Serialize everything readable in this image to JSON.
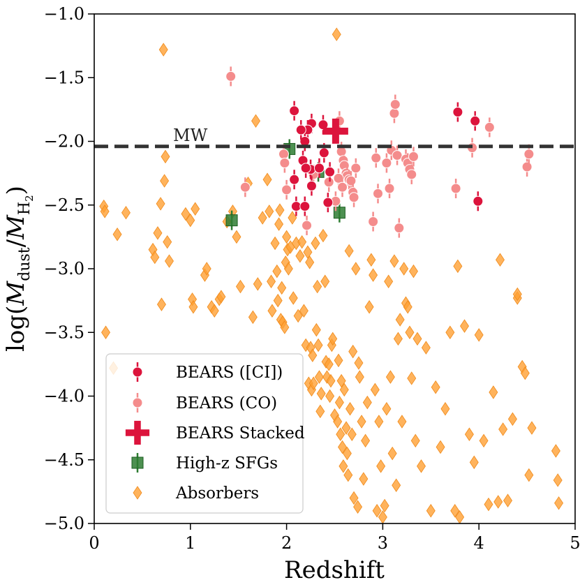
{
  "chart_data": {
    "type": "scatter",
    "xlabel": "Redshift",
    "ylabel": "log (M_dust/M_H2)",
    "xlim": [
      0,
      5
    ],
    "ylim": [
      -5.0,
      -1.0
    ],
    "xticks": [
      "0",
      "1",
      "2",
      "3",
      "4",
      "5"
    ],
    "yticks": [
      "−5.0",
      "−4.5",
      "−4.0",
      "−3.5",
      "−3.0",
      "−2.5",
      "−2.0",
      "−1.5",
      "−1.0"
    ],
    "grid": false,
    "legend_position": "lower-left",
    "reference_line": {
      "label": "MW",
      "y": -2.04,
      "style": "dashed",
      "color": "#333333"
    },
    "series": [
      {
        "name": "BEARS ([CI])",
        "marker": "circle",
        "color": "#dc143c",
        "points": [
          [
            2.08,
            -1.76
          ],
          [
            2.26,
            -1.86
          ],
          [
            2.22,
            -1.91
          ],
          [
            2.19,
            -2.0
          ],
          [
            2.15,
            -1.91
          ],
          [
            2.25,
            -2.22
          ],
          [
            2.17,
            -2.15
          ],
          [
            2.2,
            -2.21
          ],
          [
            2.26,
            -2.35
          ],
          [
            2.34,
            -2.21
          ],
          [
            2.39,
            -2.09
          ],
          [
            2.45,
            -2.24
          ],
          [
            2.08,
            -2.3
          ],
          [
            2.1,
            -2.51
          ],
          [
            2.19,
            -2.51
          ],
          [
            2.43,
            -2.48
          ],
          [
            2.38,
            -1.87
          ],
          [
            3.78,
            -1.77
          ],
          [
            3.96,
            -1.84
          ],
          [
            3.99,
            -2.47
          ]
        ]
      },
      {
        "name": "BEARS (CO)",
        "marker": "circle",
        "color": "#f48c8c",
        "points": [
          [
            1.42,
            -1.49
          ],
          [
            1.57,
            -2.36
          ],
          [
            1.97,
            -2.1
          ],
          [
            1.98,
            -2.17
          ],
          [
            2.0,
            -2.38
          ],
          [
            2.21,
            -2.66
          ],
          [
            2.28,
            -2.26
          ],
          [
            2.44,
            -2.32
          ],
          [
            2.51,
            -2.47
          ],
          [
            2.55,
            -1.84
          ],
          [
            2.57,
            -2.08
          ],
          [
            2.59,
            -2.15
          ],
          [
            2.6,
            -2.19
          ],
          [
            2.62,
            -2.25
          ],
          [
            2.63,
            -2.27
          ],
          [
            2.65,
            -2.3
          ],
          [
            2.67,
            -2.31
          ],
          [
            2.69,
            -2.4
          ],
          [
            2.7,
            -2.44
          ],
          [
            2.72,
            -2.21
          ],
          [
            2.54,
            -2.29
          ],
          [
            2.58,
            -2.36
          ],
          [
            2.9,
            -2.63
          ],
          [
            2.93,
            -2.13
          ],
          [
            2.95,
            -2.41
          ],
          [
            3.04,
            -2.17
          ],
          [
            3.07,
            -2.37
          ],
          [
            3.09,
            -2.07
          ],
          [
            3.12,
            -1.78
          ],
          [
            3.13,
            -1.71
          ],
          [
            3.15,
            -2.11
          ],
          [
            3.17,
            -2.68
          ],
          [
            3.24,
            -2.14
          ],
          [
            3.26,
            -2.17
          ],
          [
            3.28,
            -2.22
          ],
          [
            3.3,
            -2.26
          ],
          [
            3.32,
            -2.12
          ],
          [
            3.76,
            -2.37
          ],
          [
            3.93,
            -2.05
          ],
          [
            4.11,
            -1.89
          ],
          [
            4.5,
            -2.2
          ],
          [
            4.52,
            -2.1
          ]
        ]
      },
      {
        "name": "BEARS Stacked",
        "marker": "plus",
        "color": "#dc143c",
        "points": [
          [
            2.51,
            -1.92
          ]
        ]
      },
      {
        "name": "High-z SFGs",
        "marker": "square",
        "color": "#2e7d32",
        "points": [
          [
            1.43,
            -2.62
          ],
          [
            2.03,
            -2.06
          ],
          [
            2.33,
            -2.24
          ],
          [
            2.55,
            -2.56
          ]
        ]
      },
      {
        "name": "Absorbers",
        "marker": "diamond",
        "color": "#ffa033",
        "points": [
          [
            0.1,
            -2.51
          ],
          [
            0.11,
            -2.55
          ],
          [
            0.12,
            -3.5
          ],
          [
            0.2,
            -3.78
          ],
          [
            0.24,
            -2.73
          ],
          [
            0.33,
            -2.56
          ],
          [
            0.61,
            -2.85
          ],
          [
            0.63,
            -2.91
          ],
          [
            0.66,
            -2.72
          ],
          [
            0.69,
            -2.49
          ],
          [
            0.7,
            -3.28
          ],
          [
            0.72,
            -1.28
          ],
          [
            0.73,
            -2.31
          ],
          [
            0.74,
            -2.12
          ],
          [
            0.76,
            -2.79
          ],
          [
            0.78,
            -2.94
          ],
          [
            0.95,
            -2.57
          ],
          [
            1.0,
            -2.62
          ],
          [
            1.02,
            -3.24
          ],
          [
            1.03,
            -3.3
          ],
          [
            1.05,
            -2.53
          ],
          [
            1.15,
            -3.05
          ],
          [
            1.17,
            -3.0
          ],
          [
            1.22,
            -3.3
          ],
          [
            1.25,
            -3.33
          ],
          [
            1.3,
            -3.24
          ],
          [
            1.32,
            -3.22
          ],
          [
            1.38,
            -2.63
          ],
          [
            1.44,
            -2.55
          ],
          [
            1.48,
            -2.75
          ],
          [
            1.52,
            -3.14
          ],
          [
            1.6,
            -2.33
          ],
          [
            1.65,
            -3.38
          ],
          [
            1.68,
            -1.84
          ],
          [
            1.7,
            -3.12
          ],
          [
            1.75,
            -2.6
          ],
          [
            1.8,
            -2.3
          ],
          [
            1.82,
            -2.55
          ],
          [
            1.84,
            -3.1
          ],
          [
            1.85,
            -3.33
          ],
          [
            1.88,
            -2.8
          ],
          [
            1.9,
            -3.02
          ],
          [
            1.91,
            -3.25
          ],
          [
            1.92,
            -2.65
          ],
          [
            1.93,
            -2.54
          ],
          [
            1.94,
            -3.4
          ],
          [
            1.95,
            -3.15
          ],
          [
            1.96,
            -3.42
          ],
          [
            1.98,
            -3.46
          ],
          [
            1.99,
            -2.95
          ],
          [
            2.0,
            -2.75
          ],
          [
            2.01,
            -2.85
          ],
          [
            2.02,
            -3.0
          ],
          [
            2.04,
            -2.83
          ],
          [
            2.06,
            -2.6
          ],
          [
            2.07,
            -3.23
          ],
          [
            2.1,
            -2.8
          ],
          [
            2.12,
            -3.37
          ],
          [
            2.14,
            -2.9
          ],
          [
            2.16,
            -2.79
          ],
          [
            2.18,
            -3.33
          ],
          [
            2.2,
            -3.6
          ],
          [
            2.22,
            -2.87
          ],
          [
            2.23,
            -3.9
          ],
          [
            2.24,
            -2.95
          ],
          [
            2.25,
            -3.62
          ],
          [
            2.26,
            -3.95
          ],
          [
            2.27,
            -3.68
          ],
          [
            2.28,
            -3.9
          ],
          [
            2.3,
            -2.8
          ],
          [
            2.31,
            -3.48
          ],
          [
            2.32,
            -3.14
          ],
          [
            2.33,
            -3.6
          ],
          [
            2.34,
            -3.85
          ],
          [
            2.35,
            -4.12
          ],
          [
            2.36,
            -3.98
          ],
          [
            2.38,
            -2.74
          ],
          [
            2.4,
            -3.1
          ],
          [
            2.41,
            -3.73
          ],
          [
            2.42,
            -3.85
          ],
          [
            2.44,
            -3.75
          ],
          [
            2.45,
            -4.0
          ],
          [
            2.46,
            -3.88
          ],
          [
            2.47,
            -3.6
          ],
          [
            2.48,
            -3.55
          ],
          [
            2.5,
            -4.15
          ],
          [
            2.52,
            -1.16
          ],
          [
            2.53,
            -4.2
          ],
          [
            2.54,
            -3.72
          ],
          [
            2.55,
            -4.05
          ],
          [
            2.56,
            -4.3
          ],
          [
            2.57,
            -3.88
          ],
          [
            2.58,
            -4.4
          ],
          [
            2.59,
            -4.55
          ],
          [
            2.6,
            -3.95
          ],
          [
            2.62,
            -4.25
          ],
          [
            2.63,
            -4.45
          ],
          [
            2.64,
            -4.62
          ],
          [
            2.65,
            -2.86
          ],
          [
            2.66,
            -4.1
          ],
          [
            2.68,
            -4.3
          ],
          [
            2.69,
            -3.65
          ],
          [
            2.7,
            -4.8
          ],
          [
            2.72,
            -3.0
          ],
          [
            2.74,
            -4.87
          ],
          [
            2.75,
            -3.74
          ],
          [
            2.76,
            -3.85
          ],
          [
            2.78,
            -4.2
          ],
          [
            2.8,
            -4.65
          ],
          [
            2.82,
            -4.35
          ],
          [
            2.84,
            -4.05
          ],
          [
            2.86,
            -3.3
          ],
          [
            2.88,
            -2.93
          ],
          [
            2.9,
            -3.05
          ],
          [
            2.92,
            -3.95
          ],
          [
            2.94,
            -4.9
          ],
          [
            2.96,
            -4.2
          ],
          [
            2.98,
            -4.55
          ],
          [
            3.0,
            -4.95
          ],
          [
            3.02,
            -4.86
          ],
          [
            3.04,
            -4.1
          ],
          [
            3.06,
            -3.1
          ],
          [
            3.08,
            -3.85
          ],
          [
            3.1,
            -4.45
          ],
          [
            3.12,
            -2.94
          ],
          [
            3.14,
            -4.7
          ],
          [
            3.16,
            -3.55
          ],
          [
            3.18,
            -3.4
          ],
          [
            3.2,
            -4.2
          ],
          [
            3.22,
            -3.0
          ],
          [
            3.24,
            -3.27
          ],
          [
            3.26,
            -3.3
          ],
          [
            3.28,
            -3.5
          ],
          [
            3.3,
            -3.86
          ],
          [
            3.32,
            -3.02
          ],
          [
            3.34,
            -4.35
          ],
          [
            3.36,
            -3.55
          ],
          [
            3.4,
            -4.55
          ],
          [
            3.45,
            -3.62
          ],
          [
            3.5,
            -4.9
          ],
          [
            3.55,
            -3.93
          ],
          [
            3.6,
            -4.4
          ],
          [
            3.65,
            -4.1
          ],
          [
            3.7,
            -3.5
          ],
          [
            3.75,
            -4.9
          ],
          [
            3.78,
            -2.98
          ],
          [
            3.8,
            -4.95
          ],
          [
            3.85,
            -3.45
          ],
          [
            3.9,
            -4.3
          ],
          [
            3.95,
            -4.52
          ],
          [
            4.0,
            -3.52
          ],
          [
            4.05,
            -4.35
          ],
          [
            4.1,
            -4.85
          ],
          [
            4.15,
            -3.97
          ],
          [
            4.2,
            -4.83
          ],
          [
            4.22,
            -2.93
          ],
          [
            4.25,
            -4.26
          ],
          [
            4.3,
            -4.82
          ],
          [
            4.35,
            -4.18
          ],
          [
            4.4,
            -3.23
          ],
          [
            4.45,
            -3.77
          ],
          [
            4.48,
            -3.82
          ],
          [
            4.52,
            -4.62
          ],
          [
            4.55,
            -4.25
          ],
          [
            4.8,
            -4.43
          ],
          [
            4.82,
            -4.66
          ],
          [
            4.83,
            -4.84
          ],
          [
            4.4,
            -3.2
          ]
        ]
      }
    ]
  },
  "legend": {
    "items": [
      "BEARS ([CI])",
      "BEARS (CO)",
      "BEARS Stacked",
      "High-z SFGs",
      "Absorbers"
    ]
  },
  "axes": {
    "x_title": "Redshift",
    "y_title_log": "log",
    "y_title_m1": "M",
    "y_title_dust": "dust",
    "y_title_m2": "M",
    "y_title_h": "H",
    "y_title_2": "2"
  }
}
